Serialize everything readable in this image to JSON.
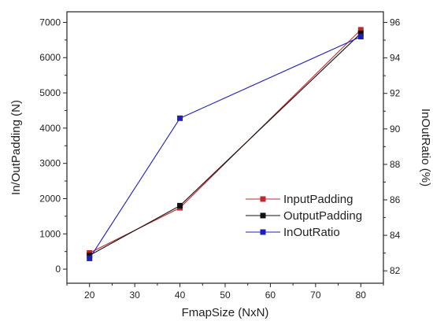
{
  "chart_data": {
    "type": "line",
    "title": "",
    "xlabel": "FmapSize (NxN)",
    "ylabel": "In/OutPadding (N)",
    "y2label": "InOutRatio (%)",
    "x": [
      20,
      40,
      80
    ],
    "xlim": [
      15,
      85
    ],
    "ylim": [
      -400,
      7300
    ],
    "y2lim": [
      81.3,
      96.6
    ],
    "xticks": [
      "20",
      "30",
      "40",
      "50",
      "60",
      "70",
      "80"
    ],
    "yticks": [
      "0",
      "1000",
      "2000",
      "3000",
      "4000",
      "5000",
      "6000",
      "7000"
    ],
    "y2ticks": [
      "82",
      "84",
      "86",
      "88",
      "90",
      "92",
      "94",
      "96"
    ],
    "grid": false,
    "legend_position": "bottom-right",
    "series": [
      {
        "name": "InputPadding",
        "axis": "left",
        "color": "#c0282c",
        "values": [
          460,
          1740,
          6790
        ]
      },
      {
        "name": "OutputPadding",
        "axis": "left",
        "color": "#111111",
        "values": [
          390,
          1800,
          6690
        ]
      },
      {
        "name": "InOutRatio",
        "axis": "right",
        "color": "#1f1fbf",
        "values": [
          82.7,
          90.6,
          95.2
        ]
      }
    ]
  }
}
